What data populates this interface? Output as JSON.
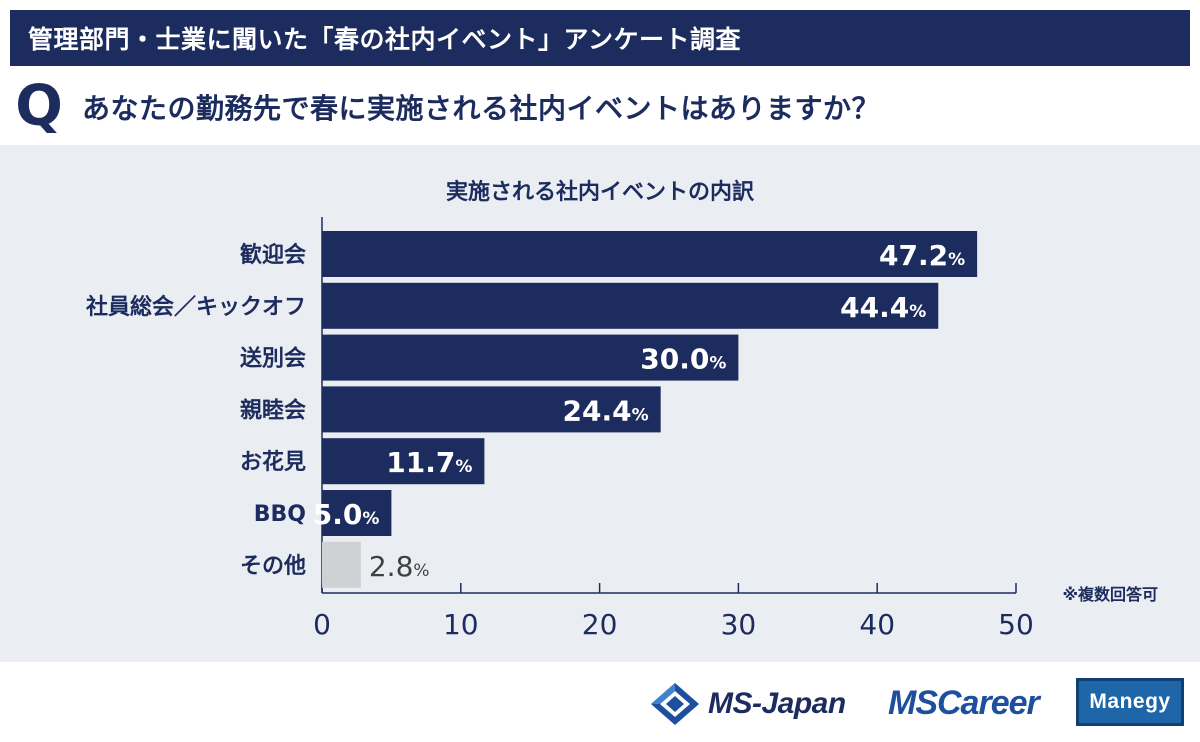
{
  "header": {
    "title": "管理部門・士業に聞いた「春の社内イベント」アンケート調査"
  },
  "question": {
    "mark": "Q",
    "text": "あなたの勤務先で春に実施される社内イベントはありますか？"
  },
  "chart_data": {
    "type": "bar",
    "orientation": "horizontal",
    "title": "実施される社内イベントの内訳",
    "categories": [
      "歓迎会",
      "社員総会／キックオフ",
      "送別会",
      "親睦会",
      "お花見",
      "BBQ",
      "その他"
    ],
    "values": [
      47.2,
      44.4,
      30.0,
      24.4,
      11.7,
      5.0,
      2.8
    ],
    "value_labels": [
      "47.2",
      "44.4",
      "30.0",
      "24.4",
      "11.7",
      "5.0",
      "2.8"
    ],
    "unit": "%",
    "xlim": [
      0,
      50
    ],
    "xticks": [
      0,
      10,
      20,
      30,
      40,
      50
    ],
    "note": "※複数回答可",
    "colors": {
      "bar": "#1d2c5e",
      "bar_other": "#cfd1d4",
      "label_inside": "#ffffff",
      "label_outside": "#404040",
      "axis": "#1d2c5e"
    }
  },
  "footer": {
    "logo_msjapan": "MS-Japan",
    "logo_mscareer": "MSCareer",
    "logo_manegy": "Manegy"
  }
}
